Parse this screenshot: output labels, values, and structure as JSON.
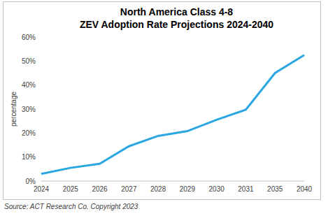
{
  "chart_data": {
    "type": "line",
    "title": "North America Class 4-8",
    "subtitle": "ZEV Adoption Rate Projections 2024-2040",
    "y_label": "percentage",
    "annotations": [
      "Source: ACT Research Co. Copyright 2023"
    ],
    "categories": [
      "2024",
      "2025",
      "2026",
      "2027",
      "2028",
      "2029",
      "2030",
      "2031",
      "2035",
      "2040"
    ],
    "values": [
      3,
      5.5,
      7.2,
      14.5,
      18.8,
      20.8,
      25.5,
      29.7,
      45,
      52.5
    ],
    "color": "#2aa7e0",
    "ylim": [
      0,
      60
    ],
    "yticks": [
      {
        "value": 0,
        "label": "0%"
      },
      {
        "value": 10,
        "label": "10%"
      },
      {
        "value": 20,
        "label": "20%"
      },
      {
        "value": 30,
        "label": "30%"
      },
      {
        "value": 40,
        "label": "40%"
      },
      {
        "value": 50,
        "label": "50%"
      },
      {
        "value": 60,
        "label": "60%"
      }
    ],
    "grid": false
  }
}
